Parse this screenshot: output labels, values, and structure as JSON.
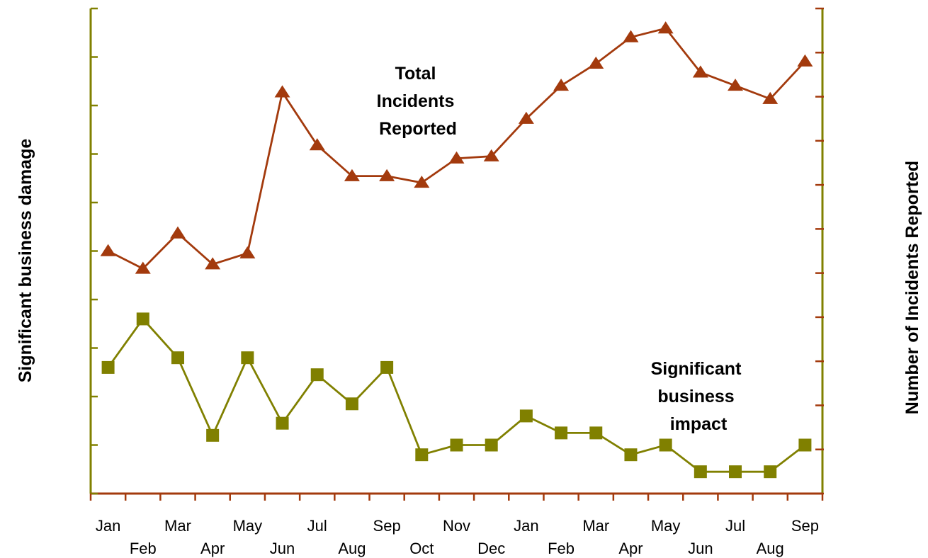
{
  "chart_data": {
    "type": "line",
    "categories": [
      "Jan",
      "Feb",
      "Mar",
      "Apr",
      "May",
      "Jun",
      "Jul",
      "Aug",
      "Sep",
      "Oct",
      "Nov",
      "Dec",
      "Jan",
      "Feb",
      "Mar",
      "Apr",
      "May",
      "Jun",
      "Jul",
      "Aug",
      "Sep"
    ],
    "y_left_label": "Significant business damage",
    "y_right_label": "Number of Incidents Reported",
    "y_left_ticks": 10,
    "y_right_ticks": 11,
    "left_ylim": [
      0,
      10
    ],
    "right_ylim": [
      0,
      11
    ],
    "grid": false,
    "series": [
      {
        "name": "Total Incidents Reported",
        "label_lines": [
          "Total",
          "Incidents",
          "Reported"
        ],
        "axis": "right",
        "marker": "triangle",
        "color": "#a33a0d",
        "values": [
          5.5,
          5.1,
          5.9,
          5.2,
          5.45,
          9.1,
          7.9,
          7.2,
          7.2,
          7.05,
          7.6,
          7.65,
          8.5,
          9.25,
          9.75,
          10.35,
          10.55,
          9.55,
          9.25,
          8.95,
          9.8
        ]
      },
      {
        "name": "Significant business impact",
        "label_lines": [
          "Significant",
          "business",
          "impact"
        ],
        "axis": "left",
        "marker": "square",
        "color": "#808000",
        "values": [
          2.6,
          3.6,
          2.8,
          1.2,
          2.8,
          1.45,
          2.45,
          1.85,
          2.6,
          0.8,
          1.0,
          1.0,
          1.6,
          1.25,
          1.25,
          0.8,
          1.0,
          0.45,
          0.45,
          0.45,
          1.0
        ]
      }
    ],
    "axis_color": "#808000",
    "right_tick_color": "#a33a0d"
  }
}
